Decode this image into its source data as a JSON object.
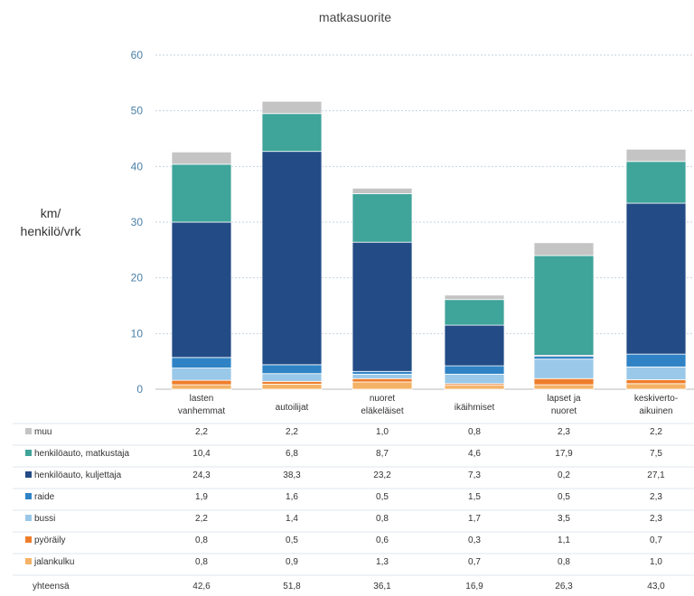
{
  "chart_data": {
    "type": "bar",
    "stacked": true,
    "title": "matkasuorite",
    "ylabel": [
      "km/",
      "henkilö/vrk"
    ],
    "ylim": [
      0,
      60
    ],
    "yticks": [
      0,
      10,
      20,
      30,
      40,
      50,
      60
    ],
    "categories": [
      [
        "lasten",
        "vanhemmat"
      ],
      [
        "autoilijat"
      ],
      [
        "nuoret",
        "eläkeläiset"
      ],
      [
        "ikäihmiset"
      ],
      [
        "lapset ja",
        "nuoret"
      ],
      [
        "keskiverto-",
        "aikuinen"
      ]
    ],
    "series": [
      {
        "name": "jalankulku",
        "color": "#f4b266",
        "values": [
          0.8,
          0.9,
          1.3,
          0.7,
          0.8,
          1.0
        ],
        "labels": [
          "0,8",
          "0,9",
          "1,3",
          "0,7",
          "0,8",
          "1,0"
        ]
      },
      {
        "name": "pyöräily",
        "color": "#ee7d2b",
        "values": [
          0.8,
          0.5,
          0.6,
          0.3,
          1.1,
          0.7
        ],
        "labels": [
          "0,8",
          "0,5",
          "0,6",
          "0,3",
          "1,1",
          "0,7"
        ]
      },
      {
        "name": "bussi",
        "color": "#9ac8e8",
        "values": [
          2.2,
          1.4,
          0.8,
          1.7,
          3.5,
          2.3
        ],
        "labels": [
          "2,2",
          "1,4",
          "0,8",
          "1,7",
          "3,5",
          "2,3"
        ]
      },
      {
        "name": "raide",
        "color": "#2f83c5",
        "values": [
          1.9,
          1.6,
          0.5,
          1.5,
          0.5,
          2.3
        ],
        "labels": [
          "1,9",
          "1,6",
          "0,5",
          "1,5",
          "0,5",
          "2,3"
        ]
      },
      {
        "name": "henkilöauto, kuljettaja",
        "color": "#234b85",
        "values": [
          24.3,
          38.3,
          23.2,
          7.3,
          0.2,
          27.1
        ],
        "labels": [
          "24,3",
          "38,3",
          "23,2",
          "7,3",
          "0,2",
          "27,1"
        ]
      },
      {
        "name": "henkilöauto, matkustaja",
        "color": "#3fa49a",
        "values": [
          10.4,
          6.8,
          8.7,
          4.6,
          17.9,
          7.5
        ],
        "labels": [
          "10,4",
          "6,8",
          "8,7",
          "4,6",
          "17,9",
          "7,5"
        ]
      },
      {
        "name": "muu",
        "color": "#c4c4c4",
        "values": [
          2.2,
          2.2,
          1.0,
          0.8,
          2.3,
          2.2
        ],
        "labels": [
          "2,2",
          "2,2",
          "1,0",
          "0,8",
          "2,3",
          "2,2"
        ]
      }
    ],
    "table_row_order": [
      "muu",
      "henkilöauto, matkustaja",
      "henkilöauto, kuljettaja",
      "raide",
      "bussi",
      "pyöräily",
      "jalankulku"
    ],
    "totals": {
      "name": "yhteensä",
      "values": [
        42.6,
        51.8,
        36.1,
        16.9,
        26.3,
        43.0
      ],
      "labels": [
        "42,6",
        "51,8",
        "36,1",
        "16,9",
        "26,3",
        "43,0"
      ]
    },
    "grid": true,
    "legend": "data-table-below"
  }
}
